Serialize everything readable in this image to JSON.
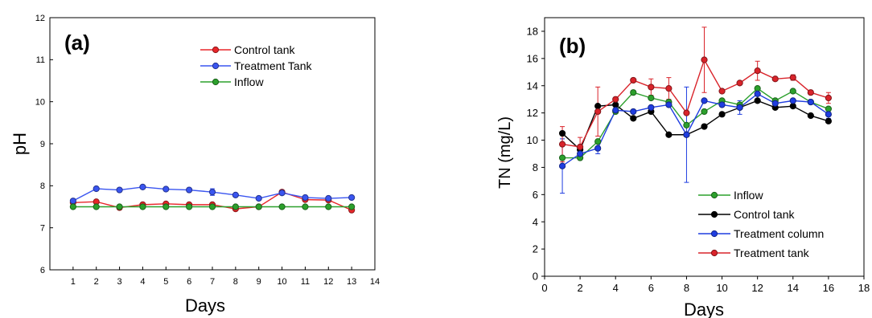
{
  "chart_data": [
    {
      "type": "line",
      "panel_label": "(a)",
      "xlabel": "Days",
      "ylabel": "pH",
      "xlim": [
        0,
        14
      ],
      "ylim": [
        6,
        12
      ],
      "x_ticks": [
        1,
        2,
        3,
        4,
        5,
        6,
        7,
        8,
        9,
        10,
        11,
        12,
        13,
        14
      ],
      "y_ticks": [
        6,
        7,
        8,
        9,
        10,
        11,
        12
      ],
      "grid": false,
      "legend_position": "top-right",
      "x": [
        1,
        2,
        3,
        4,
        5,
        6,
        7,
        8,
        9,
        10,
        11,
        12,
        13
      ],
      "series": [
        {
          "name": "Control tank",
          "color": "#e8262a",
          "values": [
            7.6,
            7.62,
            7.48,
            7.55,
            7.57,
            7.55,
            7.55,
            7.45,
            7.5,
            7.85,
            7.67,
            7.66,
            7.42
          ],
          "errors": [
            0,
            0,
            0,
            0,
            0,
            0,
            0,
            0,
            0,
            0,
            0,
            0,
            0
          ]
        },
        {
          "name": "Treatment Tank",
          "color": "#3a55f0",
          "values": [
            7.64,
            7.93,
            7.9,
            7.97,
            7.92,
            7.9,
            7.85,
            7.78,
            7.7,
            7.83,
            7.72,
            7.7,
            7.72
          ],
          "errors": [
            0,
            0,
            0,
            0,
            0,
            0,
            0.08,
            0,
            0,
            0,
            0,
            0,
            0
          ]
        },
        {
          "name": "Inflow",
          "color": "#2ca02c",
          "values": [
            7.5,
            7.5,
            7.5,
            7.5,
            7.5,
            7.5,
            7.5,
            7.5,
            7.5,
            7.5,
            7.5,
            7.5,
            7.5
          ],
          "errors": [
            0,
            0,
            0,
            0,
            0,
            0,
            0,
            0,
            0,
            0,
            0,
            0,
            0
          ]
        }
      ]
    },
    {
      "type": "line",
      "panel_label": "(b)",
      "xlabel": "Days",
      "ylabel": "TN (mg/L)",
      "xlim": [
        0,
        18
      ],
      "ylim": [
        0,
        19
      ],
      "x_ticks": [
        0,
        2,
        4,
        6,
        8,
        10,
        12,
        14,
        16,
        18
      ],
      "y_ticks": [
        0,
        2,
        4,
        6,
        8,
        10,
        12,
        14,
        16,
        18
      ],
      "grid": false,
      "legend_position": "bottom-right",
      "x": [
        1,
        2,
        3,
        4,
        5,
        6,
        7,
        8,
        9,
        10,
        11,
        12,
        13,
        14,
        15,
        16
      ],
      "series": [
        {
          "name": "Inflow",
          "color": "#2ca02c",
          "values": [
            8.7,
            8.7,
            9.9,
            12.1,
            13.5,
            13.1,
            12.8,
            11.1,
            12.1,
            12.9,
            12.6,
            13.8,
            12.9,
            13.6,
            12.8,
            12.3
          ],
          "errors": [
            0,
            0,
            0,
            0,
            0,
            0,
            0,
            0,
            0,
            0,
            0,
            0,
            0,
            0,
            0,
            0
          ]
        },
        {
          "name": "Control tank",
          "color": "#000000",
          "values": [
            10.5,
            9.3,
            12.5,
            12.6,
            11.6,
            12.1,
            10.4,
            10.4,
            11.0,
            11.9,
            12.4,
            12.9,
            12.4,
            12.5,
            11.8,
            11.4
          ],
          "errors": [
            0,
            0,
            0,
            0,
            0,
            0,
            0,
            0,
            0,
            0,
            0,
            0,
            0,
            0,
            0,
            0
          ]
        },
        {
          "name": "Treatment column",
          "color": "#1f3de0",
          "values": [
            8.1,
            9.0,
            9.4,
            12.2,
            12.1,
            12.4,
            12.6,
            10.4,
            12.9,
            12.6,
            12.4,
            13.4,
            12.7,
            12.9,
            12.8,
            11.9
          ],
          "errors": [
            2.0,
            0,
            0.4,
            0,
            0,
            0,
            0,
            3.5,
            0,
            0,
            0.5,
            0.5,
            0,
            0,
            0,
            0.3
          ]
        },
        {
          "name": "Treatment tank",
          "color": "#d9232a",
          "values": [
            9.7,
            9.5,
            12.1,
            13.0,
            14.4,
            13.9,
            13.8,
            12.0,
            15.9,
            13.6,
            14.2,
            15.1,
            14.5,
            14.6,
            13.5,
            13.1
          ],
          "errors": [
            1.3,
            0.7,
            1.8,
            0,
            0,
            0.6,
            0.8,
            0,
            2.4,
            0,
            0,
            0.7,
            0,
            0.2,
            0,
            0.4
          ]
        }
      ]
    }
  ]
}
